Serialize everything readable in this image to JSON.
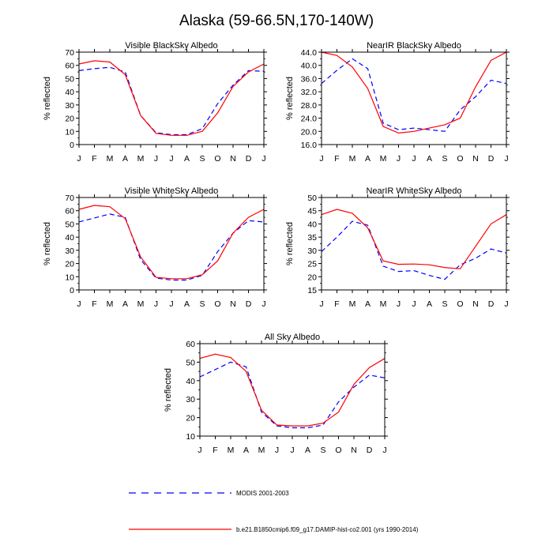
{
  "title": "Alaska (59-66.5N,170-140W)",
  "months": [
    "J",
    "F",
    "M",
    "A",
    "M",
    "J",
    "J",
    "A",
    "S",
    "O",
    "N",
    "D",
    "J"
  ],
  "legend": {
    "modis_label": "MODIS 2001-2003",
    "model_label": "b.e21.B1850cmip6.f09_g17.DAMIP-hist-co2.001 (yrs 1990-2014)"
  },
  "colors": {
    "modis": "#0000ff",
    "model": "#ff0000",
    "axis": "#000000"
  },
  "chart_data": [
    {
      "type": "line",
      "title": "Visible BlackSky Albedo",
      "ylabel": "% reflected",
      "ylim": [
        0,
        70
      ],
      "yticks": [
        "0",
        "10",
        "20",
        "30",
        "40",
        "50",
        "60",
        "70"
      ],
      "categories": [
        "J",
        "F",
        "M",
        "A",
        "M",
        "J",
        "J",
        "A",
        "S",
        "O",
        "N",
        "D",
        "J"
      ],
      "series": [
        {
          "name": "MODIS 2001-2003",
          "values": [
            56,
            57.5,
            58.5,
            55,
            22,
            9,
            7.5,
            7.5,
            12,
            31,
            45,
            56,
            55.5
          ]
        },
        {
          "name": "b.e21.B1850cmip6.f09_g17.DAMIP-hist-co2.001 (yrs 1990-2014)",
          "values": [
            61,
            63.5,
            62.5,
            53,
            22,
            8.5,
            7,
            7,
            10,
            24,
            44,
            55,
            61
          ]
        }
      ]
    },
    {
      "type": "line",
      "title": "NearIR BlackSky Albedo",
      "ylabel": "% reflected",
      "ylim": [
        16,
        44
      ],
      "yticks": [
        "16.0",
        "20.0",
        "24.0",
        "28.0",
        "32.0",
        "36.0",
        "40.0",
        "44.0"
      ],
      "categories": [
        "J",
        "F",
        "M",
        "A",
        "M",
        "J",
        "J",
        "A",
        "S",
        "O",
        "N",
        "D",
        "J"
      ],
      "series": [
        {
          "name": "MODIS 2001-2003",
          "values": [
            34.5,
            38.5,
            42,
            39,
            22.5,
            20.5,
            21,
            20.5,
            20,
            26.5,
            30.5,
            35.5,
            34.5
          ]
        },
        {
          "name": "b.e21.B1850cmip6.f09_g17.DAMIP-hist-co2.001 (yrs 1990-2014)",
          "values": [
            44,
            43,
            39.5,
            33,
            21.5,
            19.5,
            20,
            21,
            22,
            24,
            33.5,
            41.5,
            44
          ]
        }
      ]
    },
    {
      "type": "line",
      "title": "Visible WhiteSky Albedo",
      "ylabel": "% reflected",
      "ylim": [
        0,
        70
      ],
      "yticks": [
        "0",
        "10",
        "20",
        "30",
        "40",
        "50",
        "60",
        "70"
      ],
      "categories": [
        "J",
        "F",
        "M",
        "A",
        "M",
        "J",
        "J",
        "A",
        "S",
        "O",
        "N",
        "D",
        "J"
      ],
      "series": [
        {
          "name": "MODIS 2001-2003",
          "values": [
            51.5,
            54.5,
            57.5,
            55,
            23,
            9,
            7.5,
            7.5,
            11,
            29,
            43,
            52.5,
            51.5
          ]
        },
        {
          "name": "b.e21.B1850cmip6.f09_g17.DAMIP-hist-co2.001 (yrs 1990-2014)",
          "values": [
            61,
            64,
            63,
            54,
            25,
            9.5,
            8.5,
            8.5,
            11.5,
            22,
            43,
            55,
            61
          ]
        }
      ]
    },
    {
      "type": "line",
      "title": "NearIR WhiteSky Albedo",
      "ylabel": "% reflected",
      "ylim": [
        15,
        50
      ],
      "yticks": [
        "15",
        "20",
        "25",
        "30",
        "35",
        "40",
        "45",
        "50"
      ],
      "categories": [
        "J",
        "F",
        "M",
        "A",
        "M",
        "J",
        "J",
        "A",
        "S",
        "O",
        "N",
        "D",
        "J"
      ],
      "series": [
        {
          "name": "MODIS 2001-2003",
          "values": [
            29.5,
            35,
            41,
            39.5,
            24,
            22,
            22.3,
            20.5,
            19,
            24.5,
            27,
            30.5,
            29
          ]
        },
        {
          "name": "b.e21.B1850cmip6.f09_g17.DAMIP-hist-co2.001 (yrs 1990-2014)",
          "values": [
            43.5,
            45.5,
            44,
            38.5,
            26,
            24.7,
            24.8,
            24.5,
            23.5,
            23,
            31.5,
            40,
            43.5
          ]
        }
      ]
    },
    {
      "type": "line",
      "title": "All Sky Albedo",
      "ylabel": "% reflected",
      "ylim": [
        10,
        60
      ],
      "yticks": [
        "10",
        "20",
        "30",
        "40",
        "50",
        "60"
      ],
      "categories": [
        "J",
        "F",
        "M",
        "A",
        "M",
        "J",
        "J",
        "A",
        "S",
        "O",
        "N",
        "D",
        "J"
      ],
      "series": [
        {
          "name": "MODIS 2001-2003",
          "values": [
            42,
            46,
            50,
            47.5,
            23,
            15.5,
            14.5,
            14.5,
            16,
            28.5,
            36.5,
            43,
            41.5
          ]
        },
        {
          "name": "b.e21.B1850cmip6.f09_g17.DAMIP-hist-co2.001 (yrs 1990-2014)",
          "values": [
            52,
            54.3,
            52.5,
            45,
            24,
            16,
            15.5,
            15.5,
            17,
            23,
            38,
            47,
            52
          ]
        }
      ]
    }
  ]
}
